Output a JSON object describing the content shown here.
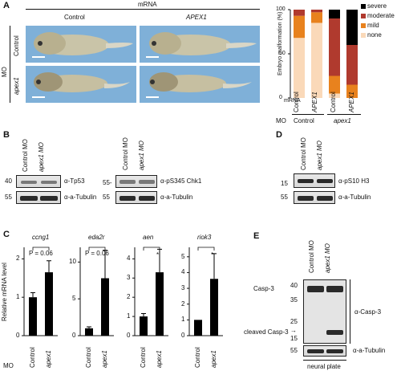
{
  "panels": {
    "A": "A",
    "B": "B",
    "C": "C",
    "D": "D",
    "E": "E"
  },
  "panelA": {
    "mrna_header": "mRNA",
    "col_control": "Control",
    "col_apex1": "APEX1",
    "mo_label": "MO",
    "row_control": "Control",
    "row_apex1": "apex1"
  },
  "stack_chart": {
    "ylabel": "Embryo malformation (%)",
    "yticks": [
      "0",
      "50",
      "100"
    ],
    "mrna_label": "mRNA",
    "mo_label": "MO",
    "x_mrna": [
      "Control",
      "APEX1",
      "Control",
      "APEX1"
    ],
    "mo_groups": [
      "Control",
      "apex1"
    ],
    "legend": [
      "severe",
      "moderate",
      "mild",
      "none"
    ],
    "colors": {
      "severe": "#000000",
      "moderate": "#b03a2e",
      "mild": "#e8821e",
      "none": "#fad9b9"
    }
  },
  "chart_data": {
    "type": "bar",
    "stacked": true,
    "categories": [
      "Control MO / Control",
      "Control MO / APEX1",
      "apex1 MO / Control",
      "apex1 MO / APEX1"
    ],
    "series": [
      {
        "name": "none",
        "values": [
          68,
          85,
          5,
          0
        ]
      },
      {
        "name": "mild",
        "values": [
          25,
          12,
          20,
          15
        ]
      },
      {
        "name": "moderate",
        "values": [
          7,
          3,
          65,
          45
        ]
      },
      {
        "name": "severe",
        "values": [
          0,
          0,
          10,
          40
        ]
      }
    ],
    "ylabel": "Embryo malformation (%)",
    "ylim": [
      0,
      100
    ]
  },
  "panelB": {
    "lanes": [
      "Control MO",
      "apex1 MO"
    ],
    "blot1_label": "α-Tp53",
    "blot1_mw": "40",
    "tub_label": "α-a-Tubulin",
    "tub_mw": "55",
    "blot2_label": "α-pS345 Chk1",
    "blot2_mw": "55-",
    "tub2_label": "α-a-Tubulin",
    "tub2_mw": "55"
  },
  "panelD": {
    "lanes": [
      "Control MO",
      "apex1 MO"
    ],
    "blot_label": "α-pS10 H3",
    "blot_mw": "15",
    "tub_label": "α-a-Tubulin",
    "tub_mw": "55"
  },
  "panelC": {
    "ylabel": "Relative mRNA level",
    "mo_label": "MO",
    "charts": [
      {
        "gene": "ccng1",
        "yticks": [
          "0",
          "1",
          "2"
        ],
        "ymax": 2.3,
        "values": [
          1.0,
          1.65
        ],
        "errors": [
          0.12,
          0.3
        ],
        "sig": "P = 0.06",
        "xlabels": [
          "Control",
          "apex1"
        ]
      },
      {
        "gene": "eda2r",
        "yticks": [
          "0",
          "5",
          "10"
        ],
        "ymax": 12,
        "values": [
          1.0,
          7.8
        ],
        "errors": [
          0.2,
          3.8
        ],
        "sig": "P = 0.06",
        "xlabels": [
          "Control",
          "apex1"
        ]
      },
      {
        "gene": "aen",
        "yticks": [
          "0",
          "1",
          "2",
          "3",
          "4"
        ],
        "ymax": 4.6,
        "values": [
          1.0,
          3.3
        ],
        "errors": [
          0.15,
          1.2
        ],
        "sig": "*",
        "xlabels": [
          "Control",
          "apex1"
        ]
      },
      {
        "gene": "riok3",
        "yticks": [
          "0",
          "1",
          "2",
          "3",
          "4",
          "5"
        ],
        "ymax": 5.6,
        "values": [
          1.0,
          3.6
        ],
        "errors": [
          0.0,
          1.6
        ],
        "sig": "*",
        "xlabels": [
          "Control",
          "apex1"
        ]
      }
    ]
  },
  "panelE": {
    "lanes": [
      "Control MO",
      "apex1 MO"
    ],
    "casp_label": "Casp-3",
    "cleaved_label": "cleaved Casp-3",
    "antibody": "α-Casp-3",
    "mw": [
      "40",
      "35",
      "25",
      "15"
    ],
    "tub_label": "α-a-Tubulin",
    "tub_mw": "55",
    "tissue": "neural plate"
  }
}
